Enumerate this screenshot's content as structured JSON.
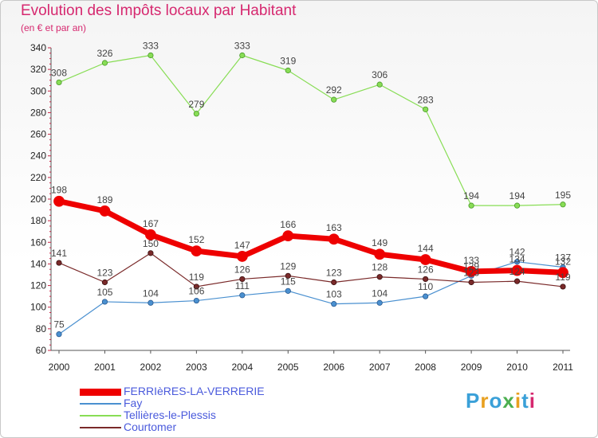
{
  "chart_data": {
    "type": "line",
    "title": "Evolution des Impôts locaux par Habitant",
    "subtitle": "(en € et par an)",
    "xlabel": "",
    "ylabel": "",
    "categories": [
      "2000",
      "2001",
      "2002",
      "2003",
      "2004",
      "2005",
      "2006",
      "2007",
      "2008",
      "2009",
      "2010",
      "2011"
    ],
    "ylim": [
      60,
      340
    ],
    "yticks": [
      60,
      80,
      100,
      120,
      140,
      160,
      180,
      200,
      220,
      240,
      260,
      280,
      300,
      320,
      340
    ],
    "grid": false,
    "legend_position": "bottom-left",
    "series": [
      {
        "name": "FERRIèRES-LA-VERRERIE",
        "color": "#ee0000",
        "values": [
          198,
          189,
          167,
          152,
          147,
          166,
          163,
          149,
          144,
          133,
          134,
          132
        ]
      },
      {
        "name": "Fay",
        "color": "#4a90d0",
        "values": [
          75,
          105,
          104,
          106,
          111,
          115,
          103,
          104,
          110,
          129,
          142,
          137
        ]
      },
      {
        "name": "Tellières-le-Plessis",
        "color": "#88dd55",
        "values": [
          308,
          326,
          333,
          279,
          333,
          319,
          292,
          306,
          283,
          194,
          194,
          195
        ]
      },
      {
        "name": "Courtomer",
        "color": "#7a2a2a",
        "values": [
          141,
          123,
          150,
          119,
          126,
          129,
          123,
          128,
          126,
          123,
          124,
          119
        ]
      }
    ]
  },
  "logo": {
    "text": "Proxiti"
  }
}
